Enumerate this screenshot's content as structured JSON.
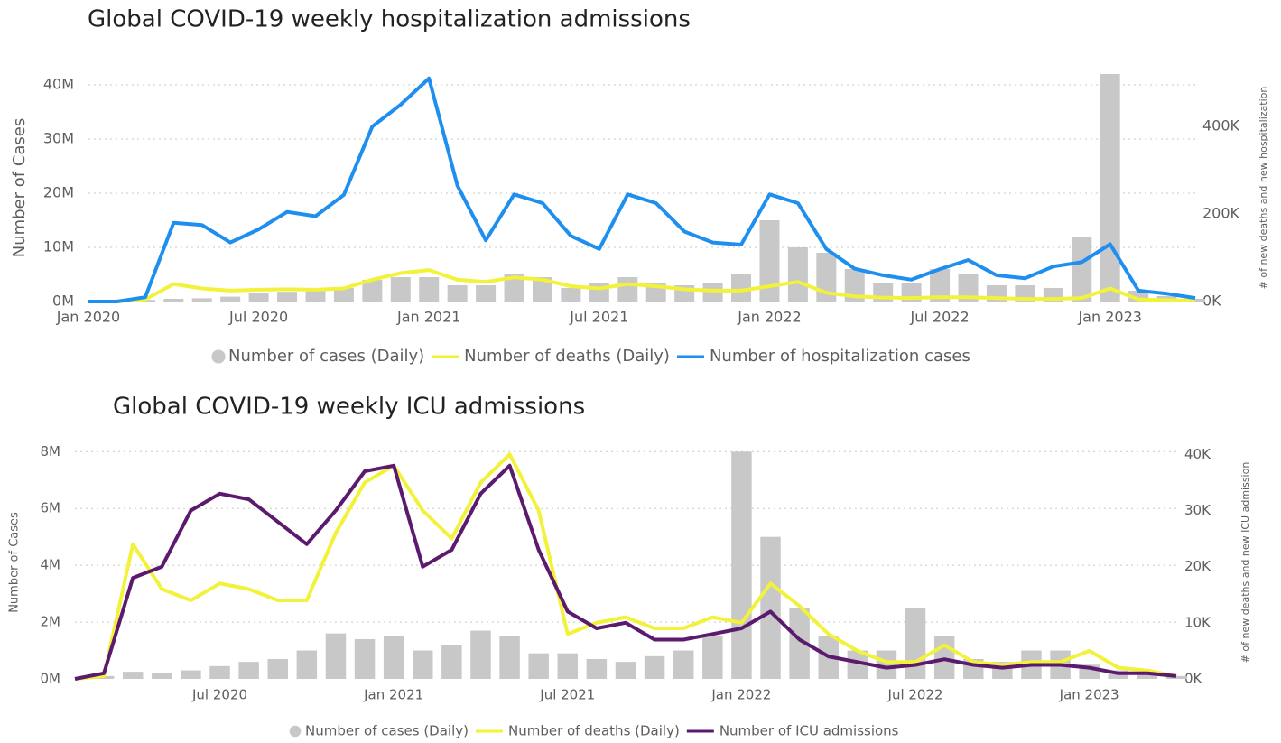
{
  "chart_data": [
    {
      "type": "combo",
      "title": "Global COVID-19 weekly hospitalization admissions",
      "y_label": "Number of Cases",
      "y2_label": "# of new deaths and new hospitalization",
      "x": [
        "2020-01",
        "2020-02",
        "2020-03",
        "2020-04",
        "2020-05",
        "2020-06",
        "2020-07",
        "2020-08",
        "2020-09",
        "2020-10",
        "2020-11",
        "2020-12",
        "2021-01",
        "2021-02",
        "2021-03",
        "2021-04",
        "2021-05",
        "2021-06",
        "2021-07",
        "2021-08",
        "2021-09",
        "2021-10",
        "2021-11",
        "2021-12",
        "2022-01",
        "2022-02",
        "2022-03",
        "2022-04",
        "2022-05",
        "2022-06",
        "2022-07",
        "2022-08",
        "2022-09",
        "2022-10",
        "2022-11",
        "2022-12",
        "2023-01",
        "2023-02",
        "2023-03",
        "2023-04"
      ],
      "xlim": [
        "2020-01",
        "2023-04"
      ],
      "xticks": [
        {
          "value": "2020-01",
          "label": "Jan 2020"
        },
        {
          "value": "2020-07",
          "label": "Jul 2020"
        },
        {
          "value": "2021-01",
          "label": "Jan 2021"
        },
        {
          "value": "2021-07",
          "label": "Jul 2021"
        },
        {
          "value": "2022-01",
          "label": "Jan 2022"
        },
        {
          "value": "2022-07",
          "label": "Jul 2022"
        },
        {
          "value": "2023-01",
          "label": "Jan 2023"
        }
      ],
      "ylim": [
        0,
        42000000
      ],
      "yticks": [
        {
          "value": 0,
          "label": "0M"
        },
        {
          "value": 10000000,
          "label": "10M"
        },
        {
          "value": 20000000,
          "label": "20M"
        },
        {
          "value": 30000000,
          "label": "30M"
        },
        {
          "value": 40000000,
          "label": "40M"
        }
      ],
      "y2lim": [
        0,
        520000
      ],
      "y2ticks": [
        {
          "value": 0,
          "label": "0K"
        },
        {
          "value": 200000,
          "label": "200K"
        },
        {
          "value": 400000,
          "label": "400K"
        }
      ],
      "grid": true,
      "series": [
        {
          "name": "Number of cases (Daily)",
          "type": "bar",
          "color": "#c8c8c8",
          "values": [
            0,
            100000,
            300000,
            500000,
            600000,
            900000,
            1500000,
            1800000,
            2000000,
            2500000,
            4000000,
            4500000,
            4500000,
            3000000,
            3000000,
            5000000,
            4500000,
            2500000,
            3500000,
            4500000,
            3500000,
            3000000,
            3500000,
            5000000,
            15000000,
            10000000,
            9000000,
            6000000,
            3500000,
            3500000,
            6000000,
            5000000,
            3000000,
            3000000,
            2500000,
            12000000,
            42000000,
            2000000,
            1000000,
            500000
          ]
        },
        {
          "name": "Number of deaths (Daily)",
          "type": "line",
          "axis": "y2",
          "color": "#f2f23a",
          "values": [
            0,
            0,
            5000,
            40000,
            30000,
            25000,
            27000,
            28000,
            27000,
            30000,
            50000,
            65000,
            72000,
            50000,
            45000,
            55000,
            50000,
            35000,
            30000,
            40000,
            35000,
            28000,
            25000,
            25000,
            35000,
            45000,
            20000,
            12000,
            9000,
            8000,
            10000,
            10000,
            8000,
            6000,
            6000,
            8000,
            30000,
            5000,
            3000,
            2000
          ]
        },
        {
          "name": "Number of hospitalization cases",
          "type": "line",
          "axis": "y2",
          "color": "#1f8fef",
          "values": [
            0,
            0,
            10000,
            180000,
            175000,
            135000,
            165000,
            205000,
            195000,
            244000,
            400000,
            450000,
            510000,
            265000,
            140000,
            245000,
            225000,
            150000,
            120000,
            245000,
            225000,
            160000,
            135000,
            130000,
            245000,
            225000,
            120000,
            75000,
            60000,
            50000,
            74000,
            95000,
            60000,
            53000,
            80000,
            90000,
            131000,
            25000,
            18000,
            8000
          ]
        }
      ]
    },
    {
      "type": "combo",
      "title": "Global COVID-19 weekly ICU admissions",
      "y_label": "Number of Cases",
      "y2_label": "# of new deaths and new ICU admission",
      "x": [
        "2020-02",
        "2020-03",
        "2020-04",
        "2020-05",
        "2020-06",
        "2020-07",
        "2020-08",
        "2020-09",
        "2020-10",
        "2020-11",
        "2020-12",
        "2021-01",
        "2021-02",
        "2021-03",
        "2021-04",
        "2021-05",
        "2021-06",
        "2021-07",
        "2021-08",
        "2021-09",
        "2021-10",
        "2021-11",
        "2021-12",
        "2022-01",
        "2022-02",
        "2022-03",
        "2022-04",
        "2022-05",
        "2022-06",
        "2022-07",
        "2022-08",
        "2022-09",
        "2022-10",
        "2022-11",
        "2022-12",
        "2023-01",
        "2023-02",
        "2023-03",
        "2023-04"
      ],
      "xlim": [
        "2020-02",
        "2023-04"
      ],
      "xticks": [
        {
          "value": "2020-07",
          "label": "Jul 2020"
        },
        {
          "value": "2021-01",
          "label": "Jan 2021"
        },
        {
          "value": "2021-07",
          "label": "Jul 2021"
        },
        {
          "value": "2022-01",
          "label": "Jan 2022"
        },
        {
          "value": "2022-07",
          "label": "Jul 2022"
        },
        {
          "value": "2023-01",
          "label": "Jan 2023"
        }
      ],
      "ylim": [
        0,
        8200000
      ],
      "yticks": [
        {
          "value": 0,
          "label": "0M"
        },
        {
          "value": 2000000,
          "label": "2M"
        },
        {
          "value": 4000000,
          "label": "4M"
        },
        {
          "value": 6000000,
          "label": "6M"
        },
        {
          "value": 8000000,
          "label": "8M"
        }
      ],
      "y2lim": [
        0,
        41500
      ],
      "y2ticks": [
        {
          "value": 0,
          "label": "0K"
        },
        {
          "value": 10000,
          "label": "10K"
        },
        {
          "value": 20000,
          "label": "20K"
        },
        {
          "value": 30000,
          "label": "30K"
        },
        {
          "value": 40000,
          "label": "40K"
        }
      ],
      "grid": true,
      "series": [
        {
          "name": "Number of cases (Daily)",
          "type": "bar",
          "color": "#c8c8c8",
          "values": [
            0,
            100000,
            250000,
            200000,
            300000,
            450000,
            600000,
            700000,
            1000000,
            1600000,
            1400000,
            1500000,
            1000000,
            1200000,
            1700000,
            1500000,
            900000,
            900000,
            700000,
            600000,
            800000,
            1000000,
            1500000,
            8000000,
            5000000,
            2500000,
            1500000,
            1000000,
            1000000,
            2500000,
            1500000,
            700000,
            600000,
            1000000,
            1000000,
            500000,
            300000,
            200000,
            100000
          ]
        },
        {
          "name": "Number of deaths (Daily)",
          "type": "line",
          "axis": "y2",
          "color": "#f2f23a",
          "values": [
            0,
            500,
            24000,
            16000,
            14000,
            17000,
            16000,
            14000,
            14000,
            26000,
            35000,
            38000,
            30000,
            25000,
            35000,
            40000,
            30000,
            8000,
            10000,
            11000,
            9000,
            9000,
            11000,
            10000,
            17000,
            13000,
            8000,
            5000,
            3000,
            3000,
            6000,
            3000,
            2500,
            3000,
            3000,
            5000,
            2000,
            1500,
            500
          ]
        },
        {
          "name": "Number of ICU admissions",
          "type": "line",
          "axis": "y2",
          "color": "#5c1a6e",
          "values": [
            0,
            1000,
            18000,
            20000,
            30000,
            33000,
            32000,
            28000,
            24000,
            30000,
            37000,
            38000,
            20000,
            23000,
            33000,
            38000,
            23000,
            12000,
            9000,
            10000,
            7000,
            7000,
            8000,
            9000,
            12000,
            7000,
            4000,
            3000,
            2000,
            2500,
            3500,
            2500,
            2000,
            2500,
            2500,
            2000,
            1000,
            1000,
            500
          ]
        }
      ]
    }
  ]
}
